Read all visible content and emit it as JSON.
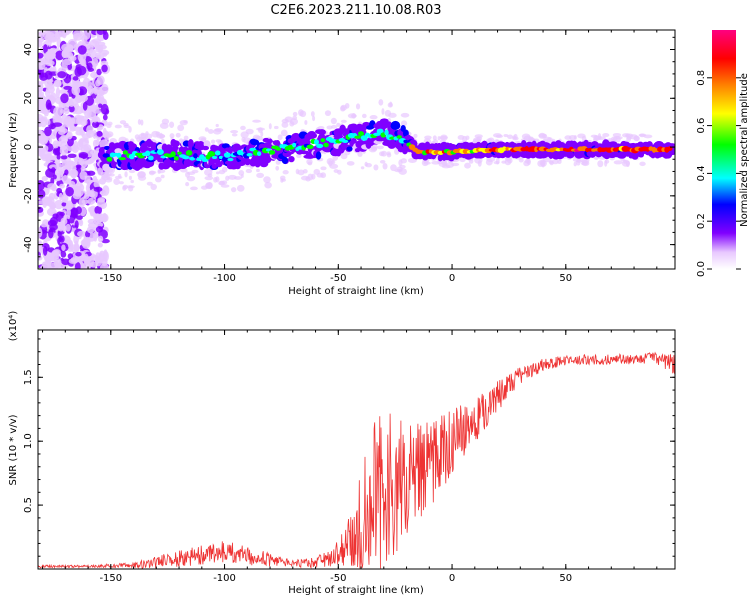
{
  "title": "C2E6.2023.211.10.08.R03",
  "chart_data": [
    {
      "type": "heatmap",
      "xlabel": "Height of straight line (km)",
      "ylabel": "Frequency (Hz)",
      "xlim": [
        -182,
        98
      ],
      "ylim": [
        -50,
        48
      ],
      "xticks": [
        -150,
        -100,
        -50,
        0,
        50
      ],
      "yticks": [
        -40,
        -20,
        0,
        20,
        40
      ],
      "colorbar": {
        "label": "Normalized spectral amplitude",
        "range": [
          0,
          1
        ],
        "ticks": [
          0.0,
          0.2,
          0.4,
          0.6,
          0.8
        ],
        "colors": [
          "#ffffff",
          "#e8c8ff",
          "#8000ff",
          "#0000ff",
          "#00ffff",
          "#00ff00",
          "#ffff00",
          "#ff8000",
          "#ff0000",
          "#ff0080"
        ]
      },
      "ridge": {
        "x": [
          -155,
          -130,
          -100,
          -75,
          -55,
          -40,
          -30,
          -22,
          -15,
          0,
          20,
          50,
          98
        ],
        "freq": [
          -4,
          -3,
          -4,
          -1,
          2,
          4,
          6,
          3,
          -2,
          -2,
          -1,
          -1,
          -1
        ]
      }
    },
    {
      "type": "line",
      "xlabel": "Height of straight line (km)",
      "ylabel": "SNR (10 * v/v)",
      "y_multiplier": "(x10⁴)",
      "xlim": [
        -182,
        98
      ],
      "ylim": [
        0,
        1.87
      ],
      "xticks": [
        -150,
        -100,
        -50,
        0,
        50
      ],
      "yticks": [
        0.5,
        1.0,
        1.5
      ],
      "ytick_labels": [
        "0.5",
        "1.0",
        "1.5"
      ],
      "color": "#ee3333",
      "envelope": {
        "x": [
          -182,
          -160,
          -140,
          -130,
          -120,
          -110,
          -100,
          -90,
          -80,
          -70,
          -60,
          -50,
          -45,
          -40,
          -35,
          -30,
          -25,
          -20,
          -15,
          -10,
          -5,
          0,
          10,
          20,
          30,
          40,
          50,
          60,
          70,
          80,
          90,
          98
        ],
        "mean": [
          0.02,
          0.02,
          0.03,
          0.05,
          0.08,
          0.11,
          0.13,
          0.11,
          0.07,
          0.04,
          0.05,
          0.12,
          0.22,
          0.38,
          0.52,
          0.62,
          0.6,
          0.72,
          0.78,
          0.82,
          0.9,
          1.0,
          1.15,
          1.35,
          1.52,
          1.6,
          1.63,
          1.64,
          1.64,
          1.64,
          1.65,
          1.6
        ],
        "spread": [
          0.01,
          0.01,
          0.02,
          0.05,
          0.07,
          0.08,
          0.09,
          0.08,
          0.05,
          0.03,
          0.04,
          0.1,
          0.2,
          0.45,
          0.6,
          0.65,
          0.6,
          0.45,
          0.4,
          0.35,
          0.3,
          0.25,
          0.18,
          0.12,
          0.07,
          0.05,
          0.04,
          0.04,
          0.04,
          0.04,
          0.05,
          0.08
        ]
      }
    }
  ]
}
